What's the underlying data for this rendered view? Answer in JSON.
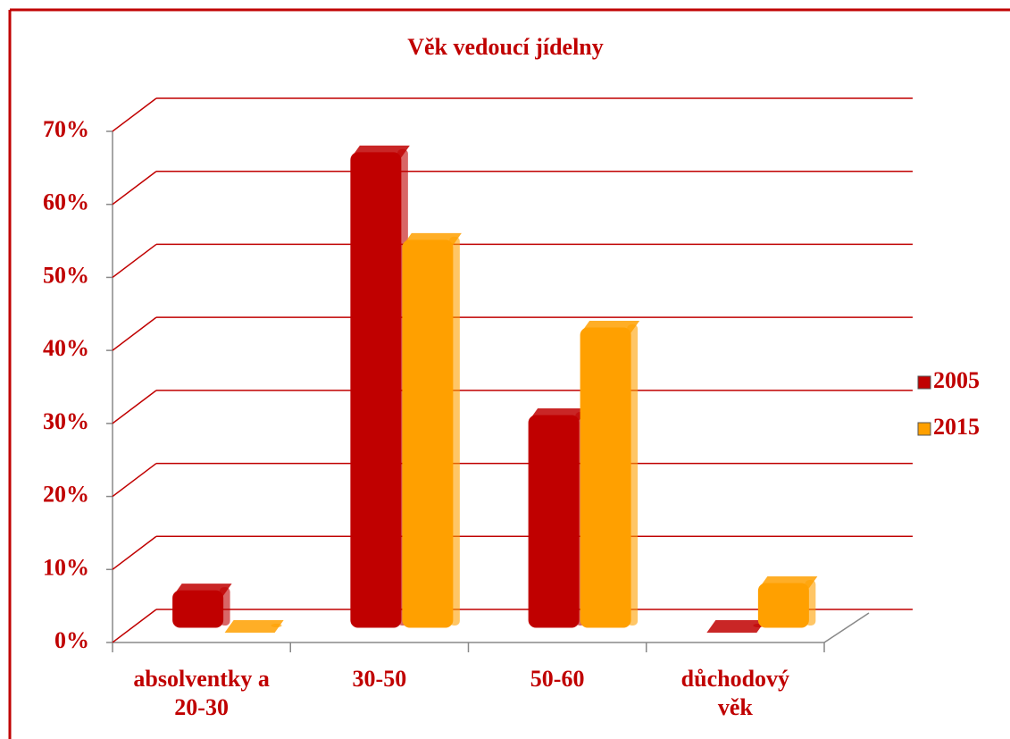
{
  "chart_data": {
    "type": "bar3d",
    "title": "Věk vedoucí jídelny",
    "categories": [
      "absolventky a 20-30",
      "30-50",
      "50-60",
      "důchodový věk"
    ],
    "series": [
      {
        "name": "2005",
        "color": "#c00000",
        "values": [
          5,
          65,
          29,
          0
        ]
      },
      {
        "name": "2015",
        "color": "#ffa000",
        "values": [
          0,
          53,
          41,
          6
        ]
      }
    ],
    "ylim": [
      0,
      70
    ],
    "yticks": [
      {
        "value": 0,
        "label": "0%"
      },
      {
        "value": 10,
        "label": "10%"
      },
      {
        "value": 20,
        "label": "20%"
      },
      {
        "value": 30,
        "label": "30%"
      },
      {
        "value": 40,
        "label": "40%"
      },
      {
        "value": 50,
        "label": "50%"
      },
      {
        "value": 60,
        "label": "60%"
      },
      {
        "value": 70,
        "label": "70%"
      }
    ],
    "grid": true,
    "legend": "right"
  }
}
